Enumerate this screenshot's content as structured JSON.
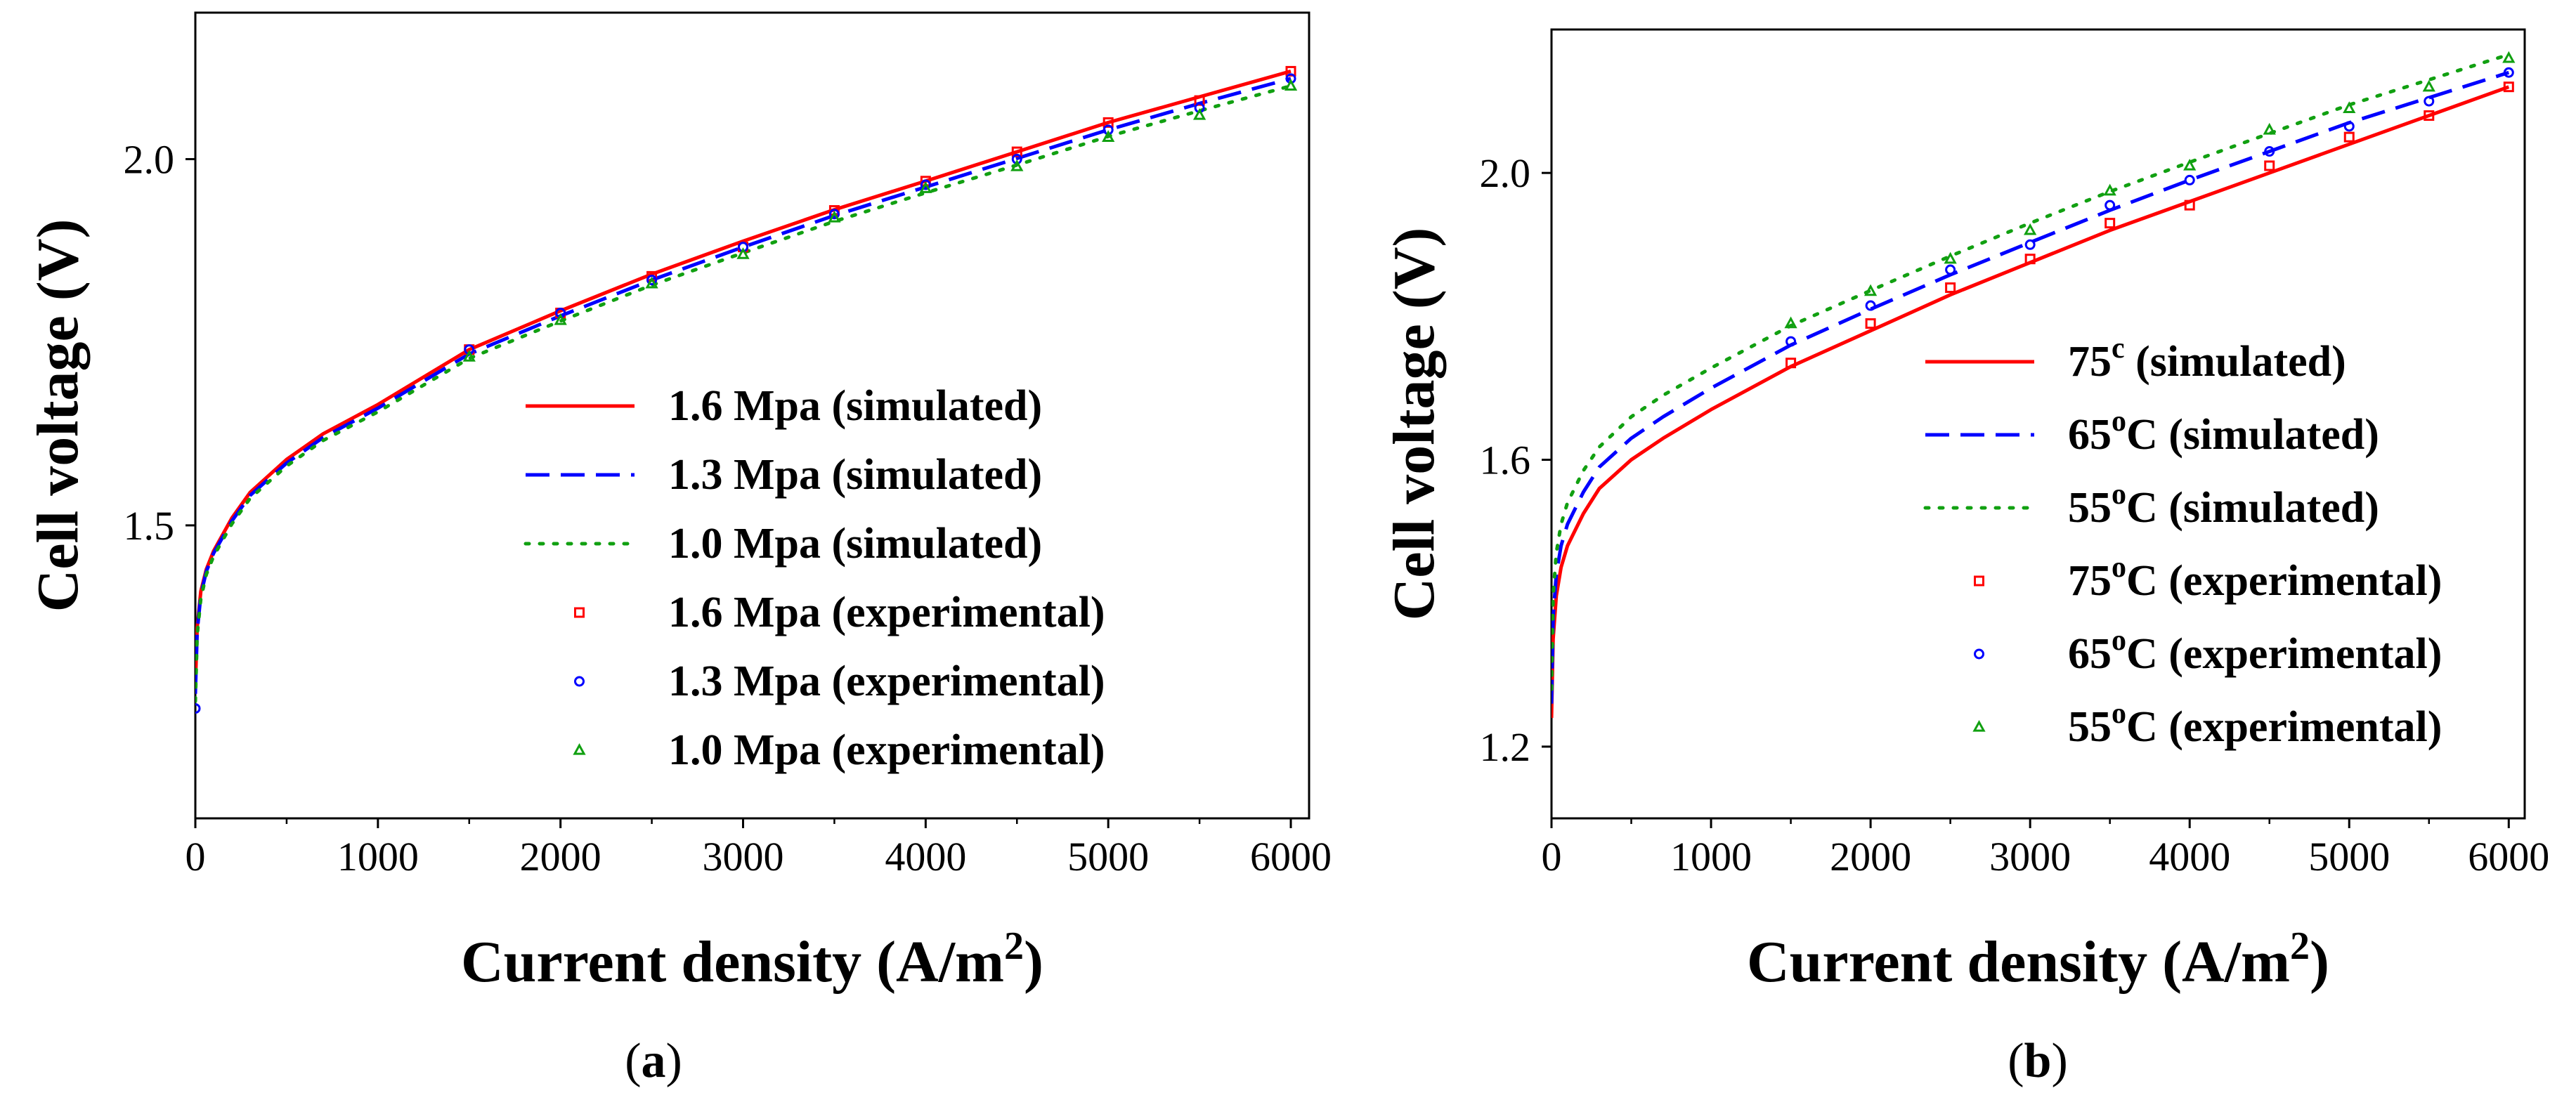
{
  "panel_labels": {
    "a": "a",
    "b": "b"
  },
  "colors": {
    "red": "#ff0000",
    "blue": "#0000ff",
    "green": "#11a011"
  },
  "chart_data": [
    {
      "id": "a",
      "type": "line",
      "title": "",
      "xlabel_main": "Current density (A/m",
      "xlabel_sup": "2",
      "xlabel_close": ")",
      "ylabel": "Cell voltage (V)",
      "xlim": [
        0,
        6100
      ],
      "ylim": [
        1.1,
        2.2
      ],
      "xticks": [
        0,
        1000,
        2000,
        3000,
        4000,
        5000,
        6000
      ],
      "xtick_labels": [
        "0",
        "1000",
        "2000",
        "3000",
        "4000",
        "5000",
        "6000"
      ],
      "yticks": [
        1.5,
        2.0
      ],
      "ytick_labels": [
        "1.5",
        "2.0"
      ],
      "grid": false,
      "legend_position": "bottom-right",
      "series": [
        {
          "name": "1.6 Mpa (simulated)",
          "kind": "line",
          "style": "solid",
          "color": "#ff0000",
          "x": [
            0,
            10,
            30,
            60,
            100,
            200,
            300,
            500,
            700,
            1000,
            1500,
            2000,
            2500,
            3000,
            3500,
            4000,
            4500,
            5000,
            5500,
            6000
          ],
          "y": [
            1.28,
            1.36,
            1.41,
            1.44,
            1.465,
            1.51,
            1.545,
            1.59,
            1.625,
            1.665,
            1.74,
            1.793,
            1.843,
            1.888,
            1.931,
            1.97,
            2.01,
            2.05,
            2.085,
            2.12
          ]
        },
        {
          "name": "1.3 Mpa (simulated)",
          "kind": "line",
          "style": "dashed",
          "color": "#0000ff",
          "x": [
            0,
            10,
            30,
            60,
            100,
            200,
            300,
            500,
            700,
            1000,
            1500,
            2000,
            2500,
            3000,
            3500,
            4000,
            4500,
            5000,
            5500,
            6000
          ],
          "y": [
            1.27,
            1.355,
            1.405,
            1.437,
            1.462,
            1.506,
            1.541,
            1.585,
            1.62,
            1.66,
            1.734,
            1.786,
            1.835,
            1.88,
            1.923,
            1.962,
            2.001,
            2.04,
            2.076,
            2.11
          ]
        },
        {
          "name": "1.0 Mpa (simulated)",
          "kind": "line",
          "style": "dotted",
          "color": "#11a011",
          "x": [
            0,
            10,
            30,
            60,
            100,
            200,
            300,
            500,
            700,
            1000,
            1500,
            2000,
            2500,
            3000,
            3500,
            4000,
            4500,
            5000,
            5500,
            6000
          ],
          "y": [
            1.26,
            1.35,
            1.4,
            1.433,
            1.458,
            1.502,
            1.537,
            1.581,
            1.616,
            1.655,
            1.728,
            1.779,
            1.828,
            1.872,
            1.915,
            1.954,
            1.992,
            2.031,
            2.066,
            2.1
          ]
        },
        {
          "name": "1.6 Mpa (experimental)",
          "kind": "marker",
          "marker": "square",
          "color": "#ff0000",
          "x": [
            1500,
            2000,
            2500,
            3000,
            3500,
            4000,
            4500,
            5000,
            5500,
            6000
          ],
          "y": [
            1.74,
            1.79,
            1.84,
            1.88,
            1.93,
            1.97,
            2.01,
            2.05,
            2.08,
            2.12
          ]
        },
        {
          "name": "1.3 Mpa (experimental)",
          "kind": "marker",
          "marker": "circle",
          "color": "#0000ff",
          "x": [
            0,
            1500,
            2000,
            2500,
            3000,
            3500,
            4000,
            4500,
            5000,
            5500,
            6000
          ],
          "y": [
            1.25,
            1.74,
            1.79,
            1.835,
            1.88,
            1.925,
            1.965,
            2.0,
            2.04,
            2.07,
            2.11
          ]
        },
        {
          "name": "1.0 Mpa (experimental)",
          "kind": "marker",
          "marker": "triangle",
          "color": "#11a011",
          "x": [
            1500,
            2000,
            2500,
            3000,
            3500,
            4000,
            4500,
            5000,
            5500,
            6000
          ],
          "y": [
            1.73,
            1.78,
            1.83,
            1.87,
            1.92,
            1.96,
            1.99,
            2.03,
            2.06,
            2.1
          ]
        }
      ]
    },
    {
      "id": "b",
      "type": "line",
      "title": "",
      "xlabel_main": "Current density (A/m",
      "xlabel_sup": "2",
      "xlabel_close": ")",
      "ylabel": "Cell voltage (V)",
      "xlim": [
        0,
        6100
      ],
      "ylim": [
        1.1,
        2.2
      ],
      "xticks": [
        0,
        1000,
        2000,
        3000,
        4000,
        5000,
        6000
      ],
      "xtick_labels": [
        "0",
        "1000",
        "2000",
        "3000",
        "4000",
        "5000",
        "6000"
      ],
      "yticks": [
        1.2,
        1.6,
        2.0
      ],
      "ytick_labels": [
        "1.2",
        "1.6",
        "2.0"
      ],
      "grid": false,
      "legend_position": "bottom-right",
      "series": [
        {
          "name": "75",
          "name_sup": "c",
          "name_rest": " (simulated)",
          "kind": "line",
          "style": "solid",
          "color": "#ff0000",
          "x": [
            0,
            10,
            30,
            60,
            100,
            200,
            300,
            500,
            700,
            1000,
            1500,
            2000,
            2500,
            3000,
            3500,
            4000,
            4500,
            5000,
            5500,
            6000
          ],
          "y": [
            1.24,
            1.35,
            1.41,
            1.45,
            1.48,
            1.525,
            1.56,
            1.6,
            1.63,
            1.67,
            1.73,
            1.78,
            1.83,
            1.875,
            1.92,
            1.96,
            2.0,
            2.04,
            2.08,
            2.12
          ]
        },
        {
          "name": "65",
          "name_sup": "o",
          "name_rest": "C (simulated)",
          "kind": "line",
          "style": "dashed",
          "color": "#0000ff",
          "x": [
            0,
            10,
            30,
            60,
            100,
            200,
            300,
            500,
            700,
            1000,
            1500,
            2000,
            2500,
            3000,
            3500,
            4000,
            4500,
            5000,
            5500,
            6000
          ],
          "y": [
            1.26,
            1.38,
            1.44,
            1.48,
            1.51,
            1.555,
            1.59,
            1.63,
            1.66,
            1.7,
            1.76,
            1.81,
            1.858,
            1.903,
            1.948,
            1.99,
            2.03,
            2.07,
            2.105,
            2.14
          ]
        },
        {
          "name": "55",
          "name_sup": "o",
          "name_rest": "C (simulated)",
          "kind": "line",
          "style": "dotted",
          "color": "#11a011",
          "x": [
            0,
            10,
            30,
            60,
            100,
            200,
            300,
            500,
            700,
            1000,
            1500,
            2000,
            2500,
            3000,
            3500,
            4000,
            4500,
            5000,
            5500,
            6000
          ],
          "y": [
            1.28,
            1.41,
            1.47,
            1.51,
            1.54,
            1.585,
            1.618,
            1.66,
            1.69,
            1.728,
            1.787,
            1.836,
            1.884,
            1.93,
            1.974,
            2.015,
            2.055,
            2.095,
            2.13,
            2.165
          ]
        },
        {
          "name": "75",
          "name_sup": "o",
          "name_rest": "C (experimental)",
          "kind": "marker",
          "marker": "square",
          "color": "#ff0000",
          "x": [
            1500,
            2000,
            2500,
            3000,
            3500,
            4000,
            4500,
            5000,
            5500,
            6000
          ],
          "y": [
            1.735,
            1.79,
            1.84,
            1.88,
            1.93,
            1.955,
            2.01,
            2.05,
            2.08,
            2.12
          ]
        },
        {
          "name": "65",
          "name_sup": "o",
          "name_rest": "C (experimental)",
          "kind": "marker",
          "marker": "circle",
          "color": "#0000ff",
          "x": [
            1500,
            2000,
            2500,
            3000,
            3500,
            4000,
            4500,
            5000,
            5500,
            6000
          ],
          "y": [
            1.765,
            1.815,
            1.865,
            1.9,
            1.955,
            1.99,
            2.03,
            2.065,
            2.1,
            2.14
          ]
        },
        {
          "name": "55",
          "name_sup": "o",
          "name_rest": "C (experimental)",
          "kind": "marker",
          "marker": "triangle",
          "color": "#11a011",
          "x": [
            1500,
            2000,
            2500,
            3000,
            3500,
            4000,
            4500,
            5000,
            5500,
            6000
          ],
          "y": [
            1.79,
            1.835,
            1.88,
            1.92,
            1.975,
            2.01,
            2.06,
            2.09,
            2.12,
            2.16
          ]
        }
      ]
    }
  ]
}
